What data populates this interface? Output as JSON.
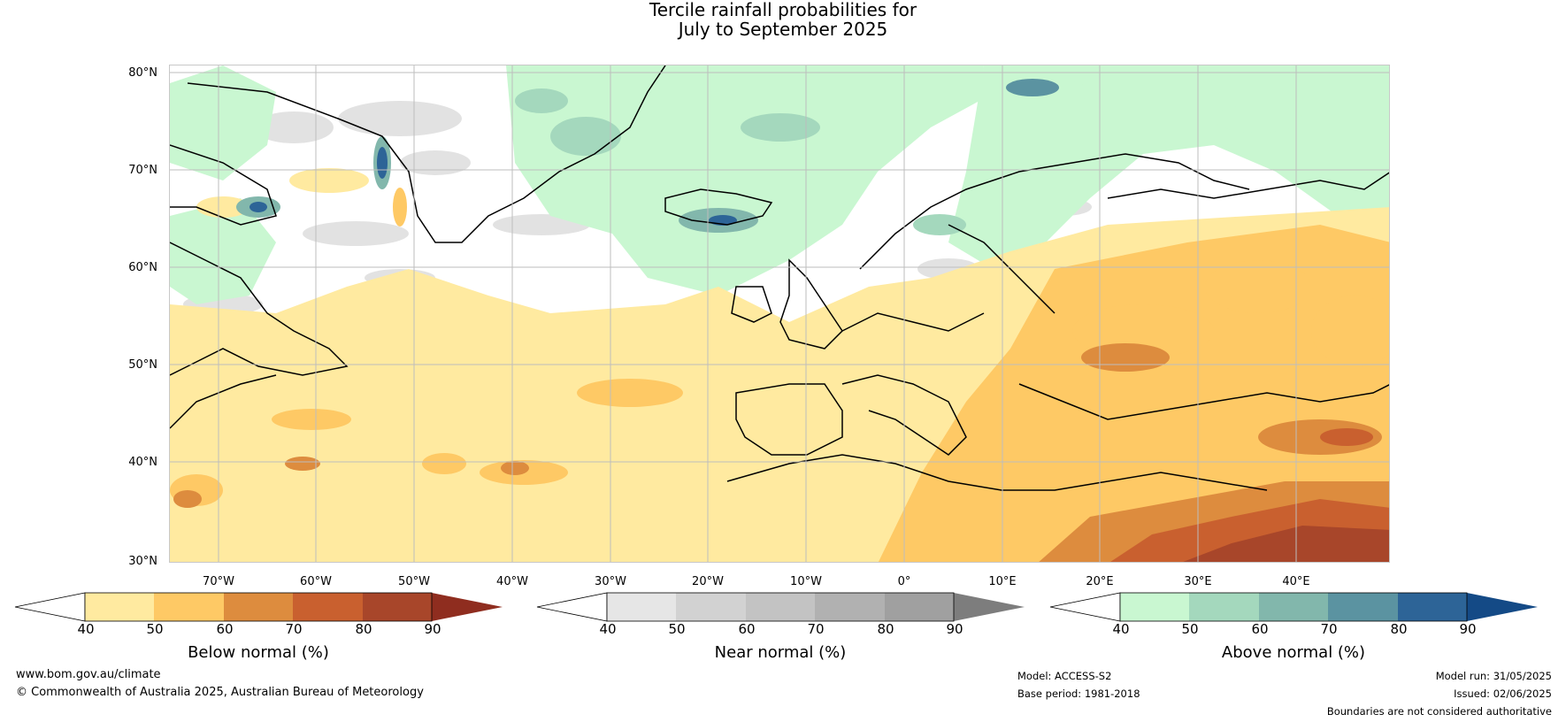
{
  "title_line1": "Tercile rainfall probabilities for",
  "title_line2": "July to September 2025",
  "lat_labels": [
    "80°N",
    "70°N",
    "60°N",
    "50°N",
    "40°N",
    "30°N"
  ],
  "lon_labels": [
    "70°W",
    "60°W",
    "50°W",
    "40°W",
    "30°W",
    "20°W",
    "10°W",
    "0°",
    "10°E",
    "20°E",
    "30°E",
    "40°E"
  ],
  "colorbars": [
    {
      "label": "Below normal (%)",
      "ticks": [
        "40",
        "50",
        "60",
        "70",
        "80",
        "90"
      ],
      "colors": [
        "#ffffff",
        "#ffeaa0",
        "#fec965",
        "#dd8c3e",
        "#c9602f",
        "#a8462a",
        "#8f2d1f"
      ]
    },
    {
      "label": "Near normal (%)",
      "ticks": [
        "40",
        "50",
        "60",
        "70",
        "80",
        "90"
      ],
      "colors": [
        "#ffffff",
        "#e6e6e6",
        "#d2d2d2",
        "#c3c3c3",
        "#b1b1b1",
        "#a0a0a0",
        "#7d7d7d"
      ]
    },
    {
      "label": "Above normal (%)",
      "ticks": [
        "40",
        "50",
        "60",
        "70",
        "80",
        "90"
      ],
      "colors": [
        "#ffffff",
        "#c9f7d1",
        "#a4d8bd",
        "#82b7ac",
        "#5b93a1",
        "#2d6497",
        "#144a86"
      ]
    }
  ],
  "footer": {
    "website": "www.bom.gov.au/climate",
    "copyright": "© Commonwealth of Australia 2025, Australian Bureau of Meteorology",
    "model": "Model: ACCESS-S2",
    "base_period": "Base period: 1981-2018",
    "model_run": "Model run: 31/05/2025",
    "issued": "Issued: 02/06/2025",
    "boundaries": "Boundaries are not considered authoritative"
  }
}
